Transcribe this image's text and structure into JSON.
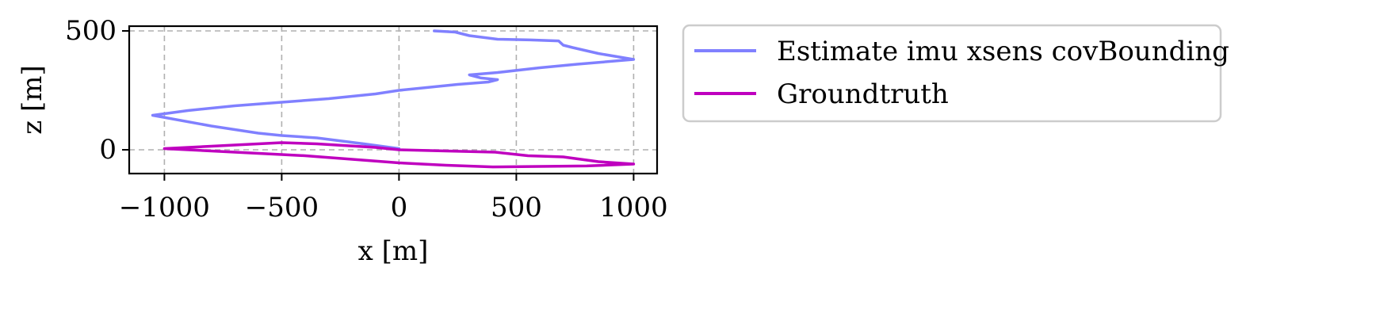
{
  "chart_data": {
    "type": "line",
    "title": "",
    "xlabel": "x [m]",
    "ylabel": "z [m]",
    "xlim": [
      -1150,
      1100
    ],
    "ylim": [
      -100,
      520
    ],
    "xticks": [
      -1000,
      -500,
      0,
      500,
      1000
    ],
    "xtick_labels": [
      "−1000",
      "−500",
      "0",
      "500",
      "1000"
    ],
    "yticks": [
      0,
      500
    ],
    "ytick_labels": [
      "0",
      "500"
    ],
    "grid": true,
    "legend_position": "outside-right",
    "series": [
      {
        "name": "Estimate imu xsens covBounding",
        "color": "#8080ff",
        "points": [
          [
            150,
            500
          ],
          [
            240,
            495
          ],
          [
            300,
            480
          ],
          [
            420,
            465
          ],
          [
            560,
            462
          ],
          [
            680,
            458
          ],
          [
            700,
            440
          ],
          [
            740,
            430
          ],
          [
            850,
            405
          ],
          [
            1000,
            380
          ],
          [
            760,
            360
          ],
          [
            600,
            345
          ],
          [
            420,
            325
          ],
          [
            300,
            315
          ],
          [
            350,
            302
          ],
          [
            420,
            295
          ],
          [
            380,
            285
          ],
          [
            250,
            275
          ],
          [
            100,
            260
          ],
          [
            0,
            250
          ],
          [
            -100,
            235
          ],
          [
            -300,
            215
          ],
          [
            -500,
            200
          ],
          [
            -700,
            185
          ],
          [
            -900,
            165
          ],
          [
            -1050,
            145
          ],
          [
            -800,
            100
          ],
          [
            -600,
            70
          ],
          [
            -500,
            60
          ],
          [
            -350,
            50
          ],
          [
            -150,
            25
          ],
          [
            0,
            5
          ]
        ]
      },
      {
        "name": "Groundtruth",
        "color": "#bf00bf",
        "points": [
          [
            0,
            0
          ],
          [
            200,
            -5
          ],
          [
            410,
            -10
          ],
          [
            550,
            -25
          ],
          [
            700,
            -30
          ],
          [
            850,
            -50
          ],
          [
            1000,
            -60
          ],
          [
            800,
            -68
          ],
          [
            600,
            -70
          ],
          [
            400,
            -72
          ],
          [
            200,
            -65
          ],
          [
            0,
            -55
          ],
          [
            -200,
            -40
          ],
          [
            -400,
            -25
          ],
          [
            -600,
            -15
          ],
          [
            -800,
            -5
          ],
          [
            -1000,
            5
          ],
          [
            -800,
            15
          ],
          [
            -600,
            25
          ],
          [
            -500,
            30
          ],
          [
            -350,
            25
          ],
          [
            -100,
            10
          ],
          [
            0,
            0
          ]
        ]
      }
    ]
  }
}
